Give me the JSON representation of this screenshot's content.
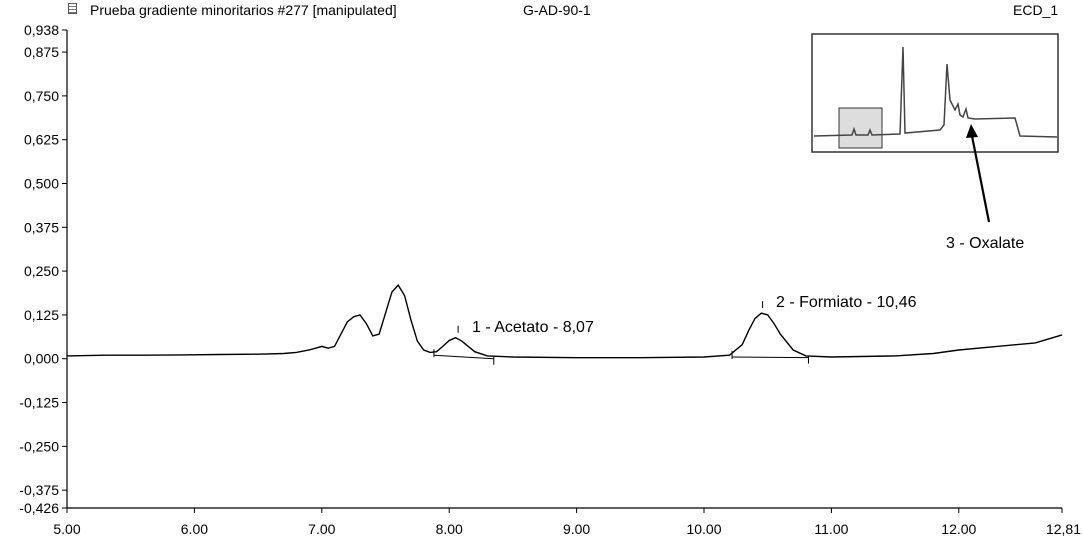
{
  "header": {
    "title": "Prueba gradiente minoritarios #277 [manipulated]",
    "sample": "G-AD-90-1",
    "detector": "ECD_1",
    "icon": "document-icon"
  },
  "chart_data": {
    "type": "line",
    "title": "Prueba gradiente minoritarios #277 [manipulated]",
    "xlim": [
      5.0,
      12.81
    ],
    "ylim": [
      -0.426,
      0.938
    ],
    "xticks": [
      "5.00",
      "6.00",
      "7.00",
      "8.00",
      "9.00",
      "10.00",
      "11.00",
      "12.00",
      "12,81"
    ],
    "yticks": [
      "0,938",
      "0,875",
      "0,750",
      "0,625",
      "0,500",
      "0,375",
      "0,250",
      "0,125",
      "0,000",
      "-0,125",
      "-0,250",
      "-0,375",
      "-0,426"
    ],
    "series": [
      {
        "x": [
          5.0,
          5.3,
          5.6,
          5.9,
          6.2,
          6.5,
          6.7,
          6.8,
          6.9,
          7.0,
          7.05,
          7.1,
          7.15,
          7.2,
          7.25,
          7.3,
          7.35,
          7.4,
          7.45,
          7.5,
          7.55,
          7.6,
          7.65,
          7.7,
          7.75,
          7.8,
          7.85,
          7.9,
          7.95,
          8.0,
          8.05,
          8.1,
          8.15,
          8.2,
          8.3,
          8.5,
          9.0,
          9.5,
          10.0,
          10.2,
          10.3,
          10.35,
          10.4,
          10.45,
          10.5,
          10.55,
          10.6,
          10.7,
          10.8,
          11.0,
          11.5,
          11.8,
          12.0,
          12.3,
          12.6,
          12.81
        ],
        "y": [
          0.008,
          0.01,
          0.01,
          0.011,
          0.012,
          0.013,
          0.015,
          0.018,
          0.025,
          0.035,
          0.03,
          0.035,
          0.07,
          0.105,
          0.12,
          0.125,
          0.1,
          0.065,
          0.07,
          0.13,
          0.19,
          0.21,
          0.18,
          0.11,
          0.05,
          0.025,
          0.018,
          0.02,
          0.035,
          0.052,
          0.06,
          0.05,
          0.035,
          0.02,
          0.008,
          0.005,
          0.003,
          0.003,
          0.005,
          0.01,
          0.04,
          0.08,
          0.115,
          0.13,
          0.125,
          0.1,
          0.07,
          0.025,
          0.008,
          0.005,
          0.008,
          0.015,
          0.025,
          0.035,
          0.045,
          0.068
        ]
      }
    ],
    "baselines": [
      {
        "x": [
          7.88,
          8.35
        ],
        "y": [
          0.01,
          0.0
        ]
      },
      {
        "x": [
          10.22,
          10.82
        ],
        "y": [
          0.005,
          0.003
        ]
      }
    ],
    "peak_markers": [
      8.07,
      10.46
    ],
    "annotations": [
      {
        "text": "1 - Acetato - 8,07",
        "x": 8.07,
        "y": 0.06
      },
      {
        "text": "2 - Formiato - 10,46",
        "x": 10.46,
        "y": 0.13
      },
      {
        "text": "3 - Oxalate"
      }
    ],
    "grid": false
  },
  "inset": {
    "label": "3 - Oxalate"
  }
}
